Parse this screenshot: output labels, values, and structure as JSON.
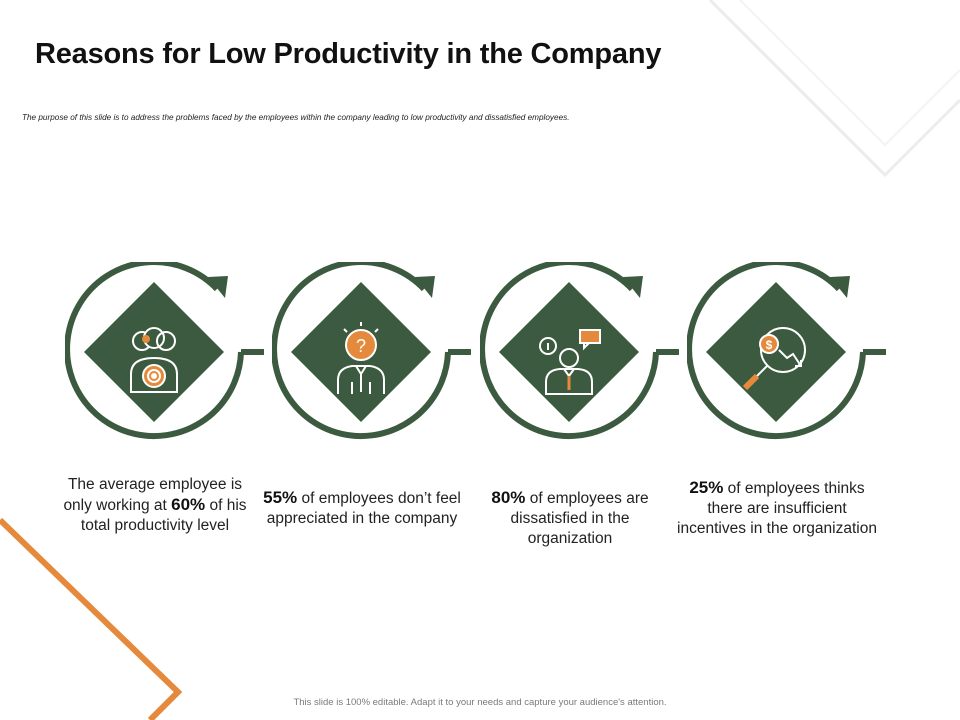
{
  "slide": {
    "title": "Reasons for Low Productivity in the Company",
    "subtitle": "The purpose of this slide is to address the problems faced by the employees within the company leading to low productivity and dissatisfied employees.",
    "footer": "This slide is 100% editable. Adapt it to your needs and capture your audience's attention."
  },
  "colors": {
    "green": "#3b5a3f",
    "orange": "#e58a3c",
    "text": "#222222",
    "deco_gray": "#ececec"
  },
  "cards": [
    {
      "icon": "team-target-icon",
      "text_before": "The average employee is only working at",
      "highlight": "60%",
      "text_after": "of his total productivity level"
    },
    {
      "icon": "businessman-question-icon",
      "text_before": "",
      "highlight": "55%",
      "text_after": "of employees don’t feel appreciated in the company"
    },
    {
      "icon": "businessman-chat-icon",
      "text_before": "",
      "highlight": "80%",
      "text_after": "of employees are dissatisfied in the organization"
    },
    {
      "icon": "magnifier-dollar-decline-icon",
      "text_before": "",
      "highlight": "25%",
      "text_after": "of employees thinks there are insufficient incentives in the organization"
    }
  ]
}
